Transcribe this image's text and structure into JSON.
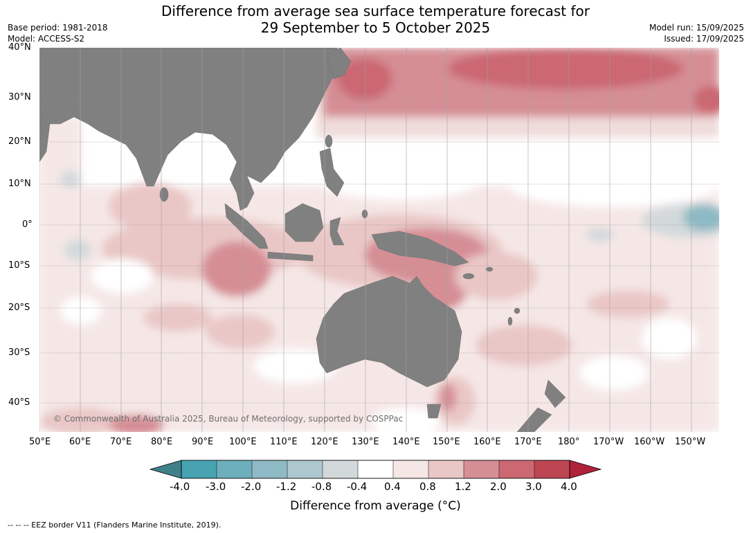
{
  "title": {
    "line1": "Difference from average sea surface temperature forecast for",
    "line2": "29 September to 5 October 2025"
  },
  "meta_left": {
    "base_period": "Base period: 1981-2018",
    "model": "Model: ACCESS-S2"
  },
  "meta_right": {
    "model_run": "Model run: 15/09/2025",
    "issued": "Issued: 17/09/2025"
  },
  "map": {
    "lat_labels": [
      "40°N",
      "30°N",
      "20°N",
      "10°N",
      "0°",
      "10°S",
      "20°S",
      "30°S",
      "40°S"
    ],
    "lon_labels": [
      "50°E",
      "60°E",
      "70°E",
      "80°E",
      "90°E",
      "100°E",
      "110°E",
      "120°E",
      "130°E",
      "140°E",
      "150°E",
      "160°E",
      "170°E",
      "180°",
      "170°W",
      "160°W",
      "150°W"
    ],
    "land_color": "#808080",
    "copyright": "© Commonwealth of Australia 2025, Bureau of Meteorology, supported by COSPPac"
  },
  "colorbar": {
    "ticks": [
      "-4.0",
      "-3.0",
      "-2.0",
      "-1.2",
      "-0.8",
      "-0.4",
      "0.4",
      "0.8",
      "1.2",
      "2.0",
      "3.0",
      "4.0"
    ],
    "colors": [
      "#3f8189",
      "#47a2b2",
      "#6dafbc",
      "#8ebac5",
      "#adc8ce",
      "#d3d9db",
      "#ffffff",
      "#f5e7e6",
      "#e9c7c6",
      "#d68e95",
      "#cb6872",
      "#be4653",
      "#b0213a"
    ],
    "label": "Difference from average (°C)"
  },
  "footer": "--  --  -- EEZ border V11 (Flanders Marine Institute, 2019)."
}
